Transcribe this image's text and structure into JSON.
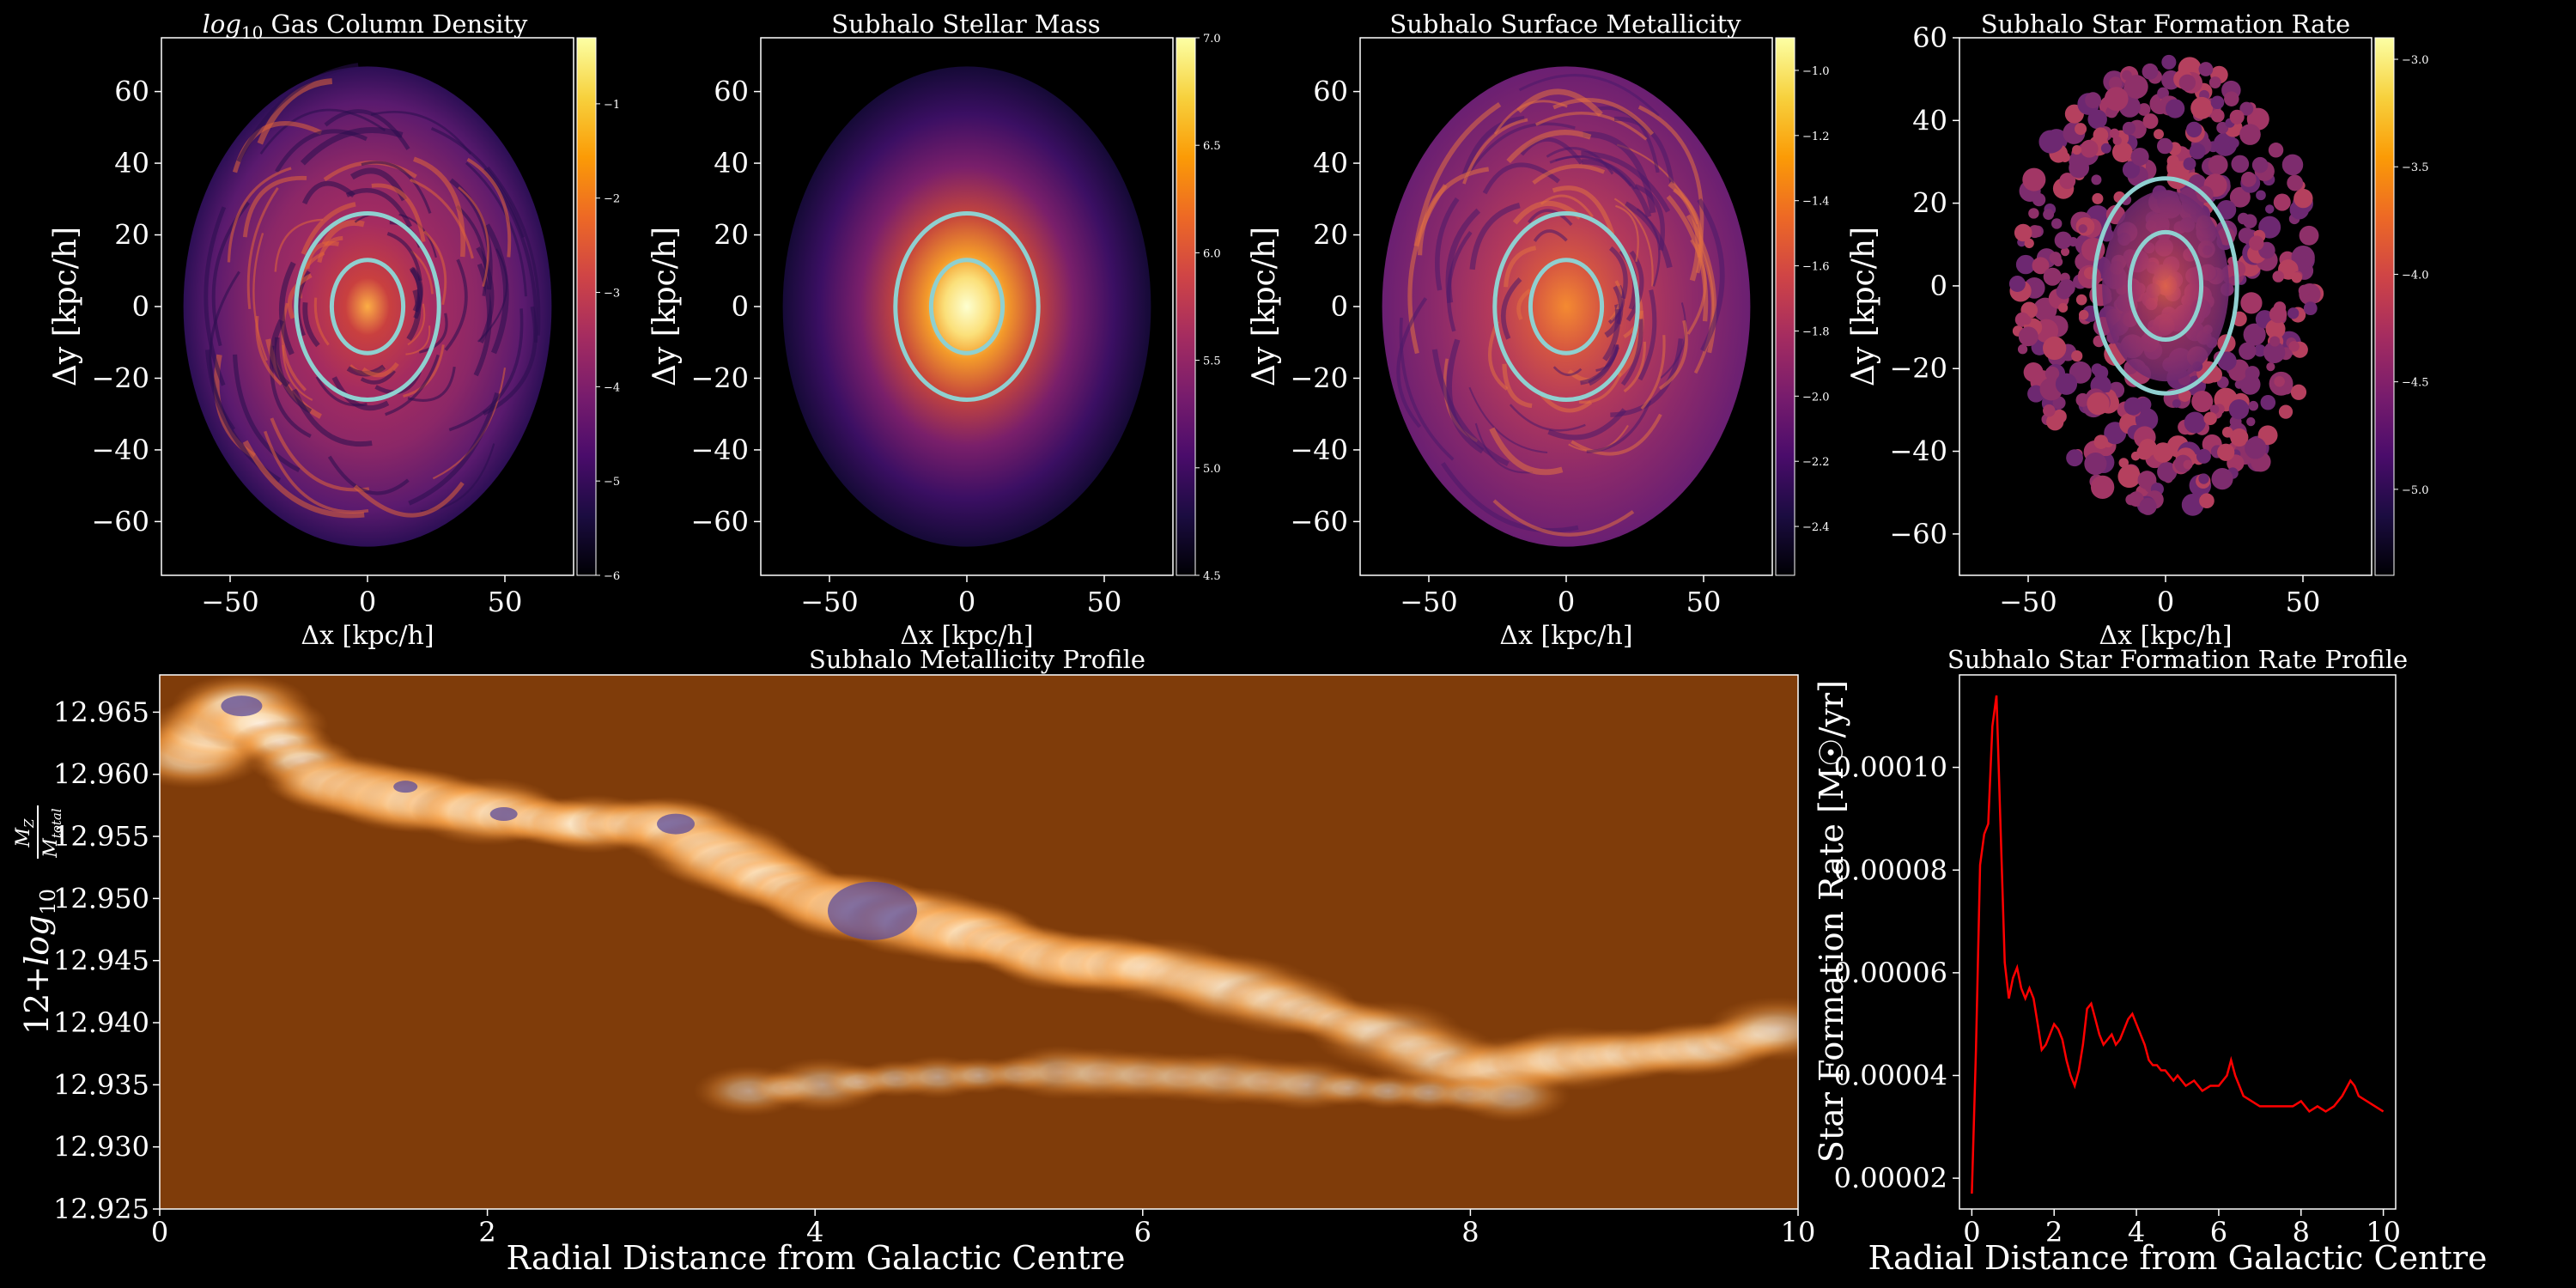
{
  "panels": [
    {
      "title_prefix": "log",
      "title_sub": "10",
      "title_rest": " Gas Column Density",
      "xlabel": "Δx [kpc/h]",
      "ylabel": "Δy [kpc/h]",
      "xticks": [
        "−50",
        "0",
        "50"
      ],
      "yticks": [
        "60",
        "40",
        "20",
        "0",
        "−20",
        "−40",
        "−60"
      ],
      "colormap": "inferno",
      "colorbar_ticks": [
        "−1",
        "−2",
        "−3",
        "−4",
        "−5",
        "−6"
      ],
      "colorbar_range": [
        -6,
        -0.3
      ],
      "ring_color": "#8fd0d0"
    },
    {
      "title": "Subhalo Stellar Mass",
      "xlabel": "Δx [kpc/h]",
      "ylabel": "Δy [kpc/h]",
      "xticks": [
        "−50",
        "0",
        "50"
      ],
      "yticks": [
        "60",
        "40",
        "20",
        "0",
        "−20",
        "−40",
        "−60"
      ],
      "colormap": "inferno",
      "colorbar_ticks": [
        "7.0",
        "6.5",
        "6.0",
        "5.5",
        "5.0",
        "4.5"
      ],
      "colorbar_range": [
        4.5,
        7.0
      ],
      "ring_color": "#8fd0d0"
    },
    {
      "title": "Subhalo Surface Metallicity",
      "xlabel": "Δx [kpc/h]",
      "ylabel": "Δy [kpc/h]",
      "xticks": [
        "−50",
        "0",
        "50"
      ],
      "yticks": [
        "60",
        "40",
        "20",
        "0",
        "−20",
        "−40",
        "−60"
      ],
      "colormap": "inferno",
      "colorbar_ticks": [
        "−1.0",
        "−1.2",
        "−1.4",
        "−1.6",
        "−1.8",
        "−2.0",
        "−2.2",
        "−2.4"
      ],
      "colorbar_range": [
        -2.55,
        -0.9
      ],
      "ring_color": "#8fd0d0"
    },
    {
      "title": "Subhalo Star Formation Rate",
      "xlabel": "Δx [kpc/h]",
      "ylabel": "Δy [kpc/h]",
      "xticks": [
        "−50",
        "0",
        "50"
      ],
      "yticks": [
        "60",
        "40",
        "20",
        "0",
        "−20",
        "−40",
        "−60"
      ],
      "colormap": "inferno",
      "colorbar_ticks": [
        "−3.0",
        "−3.5",
        "−4.0",
        "−4.5",
        "−5.0"
      ],
      "colorbar_range": [
        -5.4,
        -2.9
      ],
      "ring_color": "#8fd0d0"
    }
  ],
  "metallicity_profile": {
    "title": "Subhalo Metallicity Profile",
    "xlabel": "Radial Distance from Galactic Centre",
    "ylabel_prefix": "12+",
    "ylabel_log": "log",
    "ylabel_sub": "10",
    "ylabel_num": "M",
    "ylabel_num_sub": "Z",
    "ylabel_den": "M",
    "ylabel_den_sub": "total",
    "xticks": [
      "0",
      "2",
      "4",
      "6",
      "8",
      "10"
    ],
    "yticks": [
      "12.965",
      "12.960",
      "12.955",
      "12.950",
      "12.945",
      "12.940",
      "12.935",
      "12.930",
      "12.925"
    ],
    "background_color": "#7f3c0a"
  },
  "sfr_profile": {
    "title": "Subhalo Star Formation Rate Profile",
    "xlabel": "Radial Distance from Galactic Centre",
    "ylabel": "Star Formation Rate [M☉/yr]",
    "xticks": [
      "0",
      "2",
      "4",
      "6",
      "8",
      "10"
    ],
    "yticks": [
      "0.00010",
      "0.00008",
      "0.00006",
      "0.00004",
      "0.00002"
    ],
    "line_color": "#ff0000"
  },
  "chart_data": [
    {
      "type": "heatmap",
      "title": "log10 Gas Column Density",
      "xlabel": "Δx [kpc/h]",
      "ylabel": "Δy [kpc/h]",
      "xlim": [
        -75,
        75
      ],
      "ylim": [
        -75,
        75
      ],
      "colorbar_range": [
        -6,
        -0.3
      ],
      "aperture_radii": [
        13,
        26
      ]
    },
    {
      "type": "heatmap",
      "title": "Subhalo Stellar Mass",
      "xlabel": "Δx [kpc/h]",
      "ylabel": "Δy [kpc/h]",
      "xlim": [
        -75,
        75
      ],
      "ylim": [
        -75,
        75
      ],
      "colorbar_range": [
        4.5,
        7.0
      ],
      "aperture_radii": [
        13,
        26
      ]
    },
    {
      "type": "heatmap",
      "title": "Subhalo Surface Metallicity",
      "xlabel": "Δx [kpc/h]",
      "ylabel": "Δy [kpc/h]",
      "xlim": [
        -75,
        75
      ],
      "ylim": [
        -75,
        75
      ],
      "colorbar_range": [
        -2.55,
        -0.9
      ],
      "aperture_radii": [
        13,
        26
      ]
    },
    {
      "type": "heatmap",
      "title": "Subhalo Star Formation Rate",
      "xlabel": "Δx [kpc/h]",
      "ylabel": "Δy [kpc/h]",
      "xlim": [
        -75,
        60
      ],
      "ylim": [
        -70,
        60
      ],
      "colorbar_range": [
        -5.4,
        -2.9
      ],
      "aperture_radii": [
        13,
        26
      ]
    },
    {
      "type": "heatmap",
      "title": "Subhalo Metallicity Profile",
      "xlabel": "Radial Distance from Galactic Centre",
      "ylabel": "12+log10 MZ/Mtotal",
      "xlim": [
        0,
        10
      ],
      "ylim": [
        12.925,
        12.968
      ],
      "ridge": [
        {
          "x": 0.2,
          "y": 12.9615
        },
        {
          "x": 0.5,
          "y": 12.9655
        },
        {
          "x": 1.0,
          "y": 12.9595
        },
        {
          "x": 1.5,
          "y": 12.958
        },
        {
          "x": 2.0,
          "y": 12.957
        },
        {
          "x": 2.5,
          "y": 12.956
        },
        {
          "x": 3.1,
          "y": 12.956
        },
        {
          "x": 3.5,
          "y": 12.953
        },
        {
          "x": 4.0,
          "y": 12.95
        },
        {
          "x": 4.5,
          "y": 12.9485
        },
        {
          "x": 5.0,
          "y": 12.947
        },
        {
          "x": 5.5,
          "y": 12.945
        },
        {
          "x": 6.0,
          "y": 12.9445
        },
        {
          "x": 6.5,
          "y": 12.943
        },
        {
          "x": 7.0,
          "y": 12.941
        },
        {
          "x": 7.5,
          "y": 12.939
        },
        {
          "x": 8.0,
          "y": 12.936
        },
        {
          "x": 8.5,
          "y": 12.937
        },
        {
          "x": 9.0,
          "y": 12.9375
        },
        {
          "x": 9.5,
          "y": 12.938
        },
        {
          "x": 10.0,
          "y": 12.94
        }
      ],
      "secondary_branch": [
        {
          "x": 3.6,
          "y": 12.9345
        },
        {
          "x": 4.5,
          "y": 12.9355
        },
        {
          "x": 5.5,
          "y": 12.936
        },
        {
          "x": 6.5,
          "y": 12.9355
        },
        {
          "x": 7.5,
          "y": 12.9345
        },
        {
          "x": 8.5,
          "y": 12.934
        }
      ]
    },
    {
      "type": "line",
      "title": "Subhalo Star Formation Rate Profile",
      "xlabel": "Radial Distance from Galactic Centre",
      "ylabel": "Star Formation Rate [M☉/yr]",
      "xlim": [
        -0.3,
        10.3
      ],
      "ylim": [
        1.4e-05,
        0.000118
      ],
      "x": [
        0.0,
        0.1,
        0.2,
        0.3,
        0.4,
        0.5,
        0.6,
        0.7,
        0.8,
        0.9,
        1.0,
        1.1,
        1.2,
        1.3,
        1.4,
        1.5,
        1.6,
        1.7,
        1.8,
        1.9,
        2.0,
        2.1,
        2.2,
        2.3,
        2.4,
        2.5,
        2.6,
        2.7,
        2.8,
        2.9,
        3.0,
        3.1,
        3.2,
        3.3,
        3.4,
        3.5,
        3.6,
        3.7,
        3.8,
        3.9,
        4.0,
        4.1,
        4.2,
        4.3,
        4.4,
        4.5,
        4.6,
        4.7,
        4.8,
        4.9,
        5.0,
        5.2,
        5.4,
        5.6,
        5.8,
        6.0,
        6.2,
        6.3,
        6.4,
        6.6,
        6.8,
        7.0,
        7.2,
        7.4,
        7.6,
        7.8,
        8.0,
        8.2,
        8.4,
        8.6,
        8.8,
        9.0,
        9.2,
        9.3,
        9.4,
        9.6,
        9.8,
        10.0
      ],
      "values": [
        1.7e-05,
        4.5e-05,
        8.1e-05,
        8.7e-05,
        8.9e-05,
        0.000108,
        0.000114,
        8.8e-05,
        6.2e-05,
        5.5e-05,
        5.9e-05,
        6.1e-05,
        5.7e-05,
        5.5e-05,
        5.7e-05,
        5.5e-05,
        5e-05,
        4.5e-05,
        4.6e-05,
        4.8e-05,
        5e-05,
        4.9e-05,
        4.7e-05,
        4.3e-05,
        4e-05,
        3.8e-05,
        4.1e-05,
        4.6e-05,
        5.3e-05,
        5.4e-05,
        5.1e-05,
        4.8e-05,
        4.6e-05,
        4.7e-05,
        4.8e-05,
        4.6e-05,
        4.7e-05,
        4.9e-05,
        5.1e-05,
        5.2e-05,
        5e-05,
        4.8e-05,
        4.6e-05,
        4.3e-05,
        4.2e-05,
        4.2e-05,
        4.1e-05,
        4.1e-05,
        4e-05,
        3.9e-05,
        4e-05,
        3.8e-05,
        3.9e-05,
        3.7e-05,
        3.8e-05,
        3.8e-05,
        4e-05,
        4.3e-05,
        4e-05,
        3.6e-05,
        3.5e-05,
        3.4e-05,
        3.4e-05,
        3.4e-05,
        3.4e-05,
        3.4e-05,
        3.5e-05,
        3.3e-05,
        3.4e-05,
        3.3e-05,
        3.4e-05,
        3.6e-05,
        3.9e-05,
        3.8e-05,
        3.6e-05,
        3.5e-05,
        3.4e-05,
        3.3e-05
      ]
    }
  ]
}
